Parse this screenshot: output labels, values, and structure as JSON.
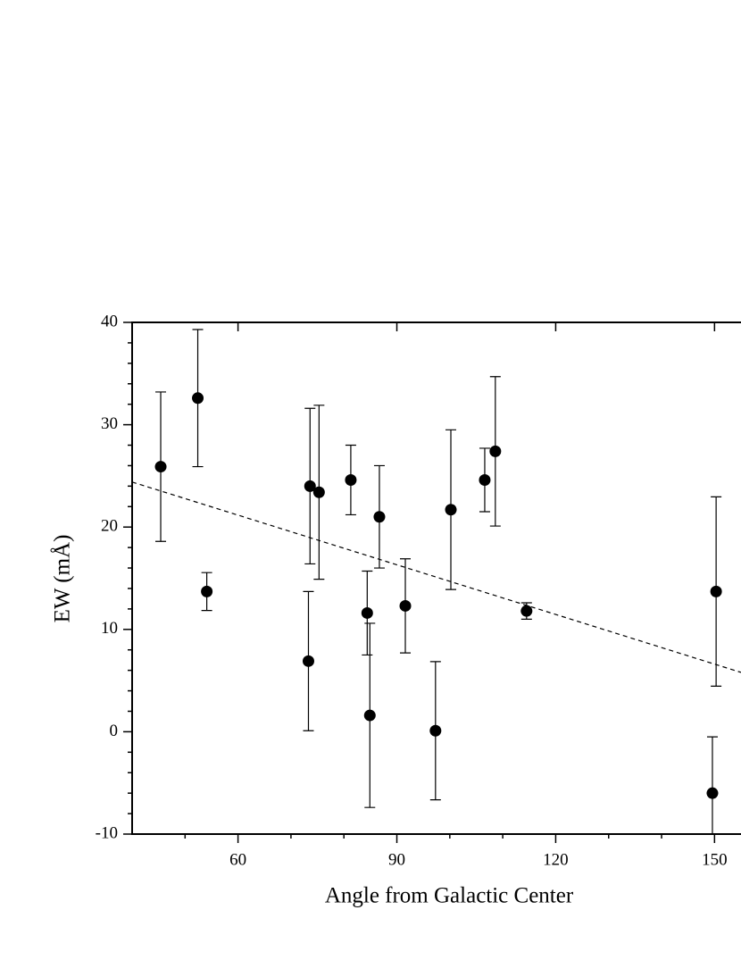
{
  "chart_data": {
    "type": "scatter",
    "x_label": "Angle from Galactic Center",
    "y_label": "EW (mÅ)",
    "xlim": [
      40,
      155
    ],
    "ylim": [
      -10,
      40
    ],
    "xticks": [
      60,
      90,
      120,
      150
    ],
    "yticks": [
      -10,
      0,
      10,
      20,
      30,
      40
    ],
    "xminorticks": [
      50,
      70,
      80,
      100,
      110,
      130,
      140
    ],
    "yminorticks": [
      -8,
      -6,
      -4,
      -2,
      2,
      4,
      6,
      8,
      12,
      14,
      16,
      18,
      22,
      24,
      26,
      28,
      32,
      34,
      36,
      38
    ],
    "series": [
      {
        "color": "#000000",
        "x": [
          45.4,
          52.4,
          54.1,
          73.3,
          73.6,
          75.3,
          81.3,
          84.4,
          84.9,
          86.7,
          91.6,
          97.3,
          100.2,
          106.6,
          108.6,
          114.5,
          149.6,
          150.3
        ],
        "values": [
          25.9,
          32.6,
          13.7,
          6.9,
          24.0,
          23.4,
          24.6,
          11.6,
          1.6,
          21.0,
          12.3,
          0.1,
          21.7,
          24.6,
          27.4,
          11.8,
          -6.0,
          13.7
        ],
        "errors": [
          7.3,
          6.7,
          1.85,
          6.8,
          7.6,
          8.5,
          3.4,
          4.1,
          9.0,
          5.0,
          4.6,
          6.75,
          7.8,
          3.1,
          7.3,
          0.8,
          5.5,
          9.25
        ]
      }
    ],
    "fit": {
      "color": "#000000",
      "x": [
        40,
        155
      ],
      "y": [
        24.4,
        5.8
      ]
    }
  }
}
